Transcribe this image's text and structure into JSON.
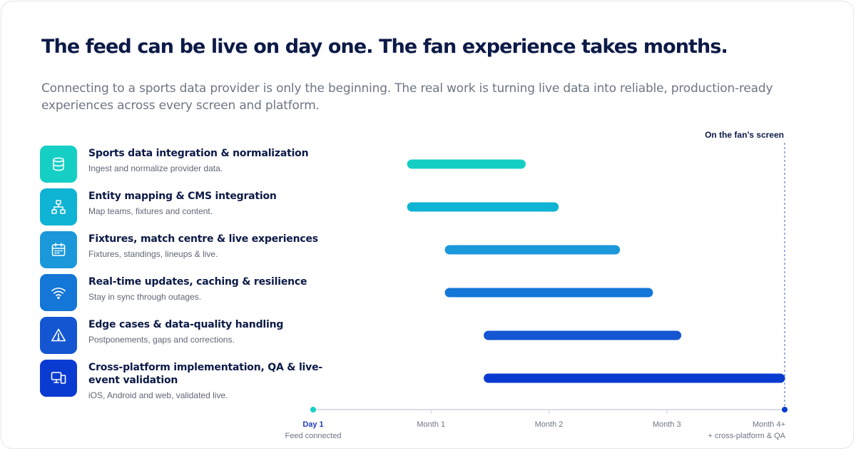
{
  "header": {
    "title": "The feed can be live on day one. The fan experience takes months.",
    "subtitle": "Connecting to a sports data provider is only the beginning. The real work is turning live data into reliable, production-ready experiences across every screen and platform."
  },
  "tasks": [
    {
      "name": "Sports data integration & normalization",
      "description": "Ingest and normalize provider data.",
      "icon": "database-icon",
      "color": "#16cfc4"
    },
    {
      "name": "Entity mapping & CMS integration",
      "description": "Map teams, fixtures and content.",
      "icon": "sitemap-icon",
      "color": "#0fb3d3"
    },
    {
      "name": "Fixtures, match centre & live experiences",
      "description": "Fixtures, standings, lineups & live.",
      "icon": "calendar-icon",
      "color": "#1b98da"
    },
    {
      "name": "Real-time updates, caching & resilience",
      "description": "Stay in sync through outages.",
      "icon": "wifi-icon",
      "color": "#1476d6"
    },
    {
      "name": "Edge cases & data-quality handling",
      "description": "Postponements, gaps and corrections.",
      "icon": "warning-icon",
      "color": "#1456d2"
    },
    {
      "name": "Cross-platform implementation, QA & live-event validation",
      "description": "iOS, Android and web, validated live.",
      "icon": "devices-icon",
      "color": "#0a3bd1"
    }
  ],
  "chart_data": {
    "type": "gantt",
    "x_unit": "months",
    "xlim": [
      0,
      4
    ],
    "ticks": [
      {
        "value": 0,
        "label": "Day 1",
        "sublabel": "Feed connected"
      },
      {
        "value": 1,
        "label": "Month 1",
        "sublabel": ""
      },
      {
        "value": 2,
        "label": "Month 2",
        "sublabel": ""
      },
      {
        "value": 3,
        "label": "Month 3",
        "sublabel": ""
      },
      {
        "value": 4,
        "label": "Month 4+",
        "sublabel": "+ cross-platform & QA"
      }
    ],
    "bars": [
      {
        "start": 0.8,
        "end": 1.8
      },
      {
        "start": 0.8,
        "end": 2.08
      },
      {
        "start": 1.12,
        "end": 2.6
      },
      {
        "start": 1.12,
        "end": 2.88
      },
      {
        "start": 1.45,
        "end": 3.12
      },
      {
        "start": 1.45,
        "end": 4.0
      }
    ],
    "marker": {
      "value": 4,
      "label": "On the fan’s screen"
    },
    "day_one_color": "#16cfc4",
    "axis_color": "#d9dee6",
    "marker_color": "#0a3bd1"
  }
}
